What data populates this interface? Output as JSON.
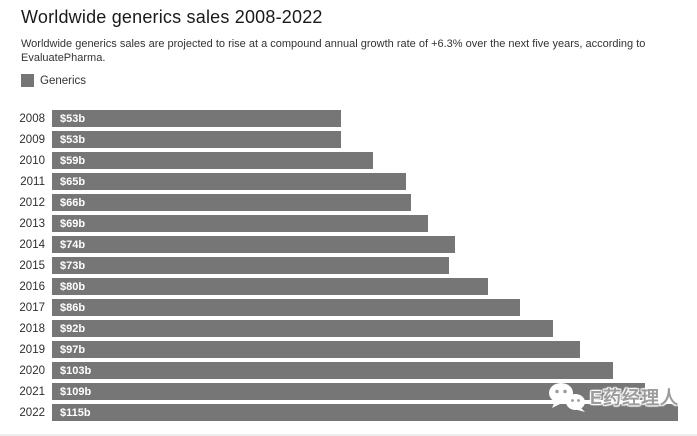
{
  "header": {
    "title": "Worldwide generics sales 2008-2022",
    "subtitle": "Worldwide generics sales are projected to rise at a compound annual growth rate of +6.3% over the next five years, according to EvaluatePharma."
  },
  "legend": {
    "label": "Generics",
    "swatch_color": "#757575"
  },
  "chart_data": {
    "type": "bar",
    "orientation": "horizontal",
    "title": "Worldwide generics sales 2008-2022",
    "series_name": "Generics",
    "categories": [
      "2008",
      "2009",
      "2010",
      "2011",
      "2012",
      "2013",
      "2014",
      "2015",
      "2016",
      "2017",
      "2018",
      "2019",
      "2020",
      "2021",
      "2022"
    ],
    "values": [
      53,
      53,
      59,
      65,
      66,
      69,
      74,
      73,
      80,
      86,
      92,
      97,
      103,
      109,
      115
    ],
    "value_labels": [
      "$53b",
      "$53b",
      "$59b",
      "$65b",
      "$66b",
      "$69b",
      "$74b",
      "$73b",
      "$80b",
      "$86b",
      "$92b",
      "$97b",
      "$103b",
      "$109b",
      "$115b"
    ],
    "xlim": [
      0,
      115
    ],
    "bar_color": "#767676",
    "value_label_color": "#ffffff",
    "grid": false,
    "legend_position": "top-left",
    "unit": "billion USD"
  },
  "watermark": {
    "text": "E药经理人",
    "icon": "wechat-icon",
    "text_color": "#9c9c9c"
  }
}
